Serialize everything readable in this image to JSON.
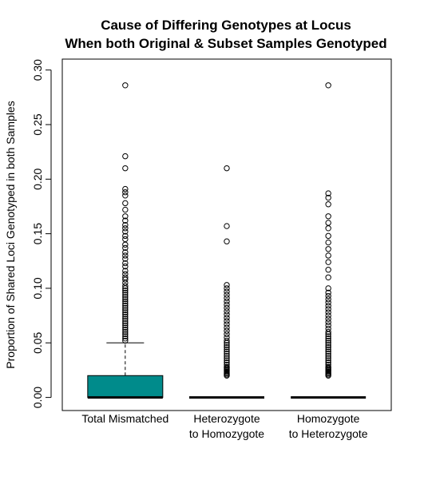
{
  "chart_data": {
    "type": "boxplot",
    "title": [
      "Cause of Differing Genotypes at Locus",
      "When both Original & Subset Samples Genotyped"
    ],
    "ylabel": "Proportion of Shared Loci Genotyped in both Samples",
    "xlabel": "",
    "ylim": [
      -0.012,
      0.31
    ],
    "yticks": [
      0.0,
      0.05,
      0.1,
      0.15,
      0.2,
      0.25,
      0.3
    ],
    "ytick_labels": [
      "0.00",
      "0.05",
      "0.10",
      "0.15",
      "0.20",
      "0.25",
      "0.30"
    ],
    "grid": false,
    "legend": "none",
    "fill_color": "#008B8B",
    "categories": [
      [
        "Total Mismatched"
      ],
      [
        "Heterozygote",
        "to Homozygote"
      ],
      [
        "Homozygote",
        "to Heterozygote"
      ]
    ],
    "series": [
      {
        "filled": true,
        "q1": 0.0,
        "median": 0.0,
        "q3": 0.02,
        "whisker_low": 0.0,
        "whisker_high": 0.05,
        "outliers": [
          0.052,
          0.054,
          0.056,
          0.058,
          0.06,
          0.062,
          0.064,
          0.066,
          0.068,
          0.07,
          0.072,
          0.074,
          0.076,
          0.078,
          0.08,
          0.082,
          0.084,
          0.086,
          0.088,
          0.09,
          0.092,
          0.094,
          0.096,
          0.098,
          0.1,
          0.102,
          0.105,
          0.108,
          0.11,
          0.113,
          0.116,
          0.12,
          0.123,
          0.127,
          0.13,
          0.133,
          0.137,
          0.14,
          0.145,
          0.148,
          0.152,
          0.155,
          0.158,
          0.162,
          0.166,
          0.172,
          0.178,
          0.185,
          0.188,
          0.191,
          0.21,
          0.221,
          0.286
        ]
      },
      {
        "filled": false,
        "q1": 0.0,
        "median": 0.0,
        "q3": 0.0,
        "whisker_low": 0.0,
        "whisker_high": 0.0,
        "outliers": [
          0.02,
          0.021,
          0.022,
          0.023,
          0.024,
          0.025,
          0.026,
          0.027,
          0.028,
          0.03,
          0.032,
          0.034,
          0.036,
          0.038,
          0.04,
          0.042,
          0.044,
          0.046,
          0.048,
          0.05,
          0.052,
          0.055,
          0.058,
          0.061,
          0.064,
          0.067,
          0.07,
          0.073,
          0.076,
          0.079,
          0.082,
          0.085,
          0.088,
          0.091,
          0.094,
          0.097,
          0.1,
          0.103,
          0.143,
          0.157,
          0.21
        ]
      },
      {
        "filled": false,
        "q1": 0.0,
        "median": 0.0,
        "q3": 0.0,
        "whisker_low": 0.0,
        "whisker_high": 0.0,
        "outliers": [
          0.02,
          0.021,
          0.022,
          0.023,
          0.024,
          0.025,
          0.026,
          0.027,
          0.028,
          0.03,
          0.032,
          0.034,
          0.036,
          0.038,
          0.04,
          0.042,
          0.044,
          0.046,
          0.048,
          0.05,
          0.052,
          0.054,
          0.056,
          0.058,
          0.06,
          0.063,
          0.066,
          0.069,
          0.072,
          0.075,
          0.078,
          0.081,
          0.084,
          0.087,
          0.09,
          0.093,
          0.096,
          0.1,
          0.11,
          0.117,
          0.124,
          0.13,
          0.136,
          0.142,
          0.148,
          0.155,
          0.16,
          0.166,
          0.177,
          0.183,
          0.187,
          0.286
        ]
      }
    ]
  }
}
